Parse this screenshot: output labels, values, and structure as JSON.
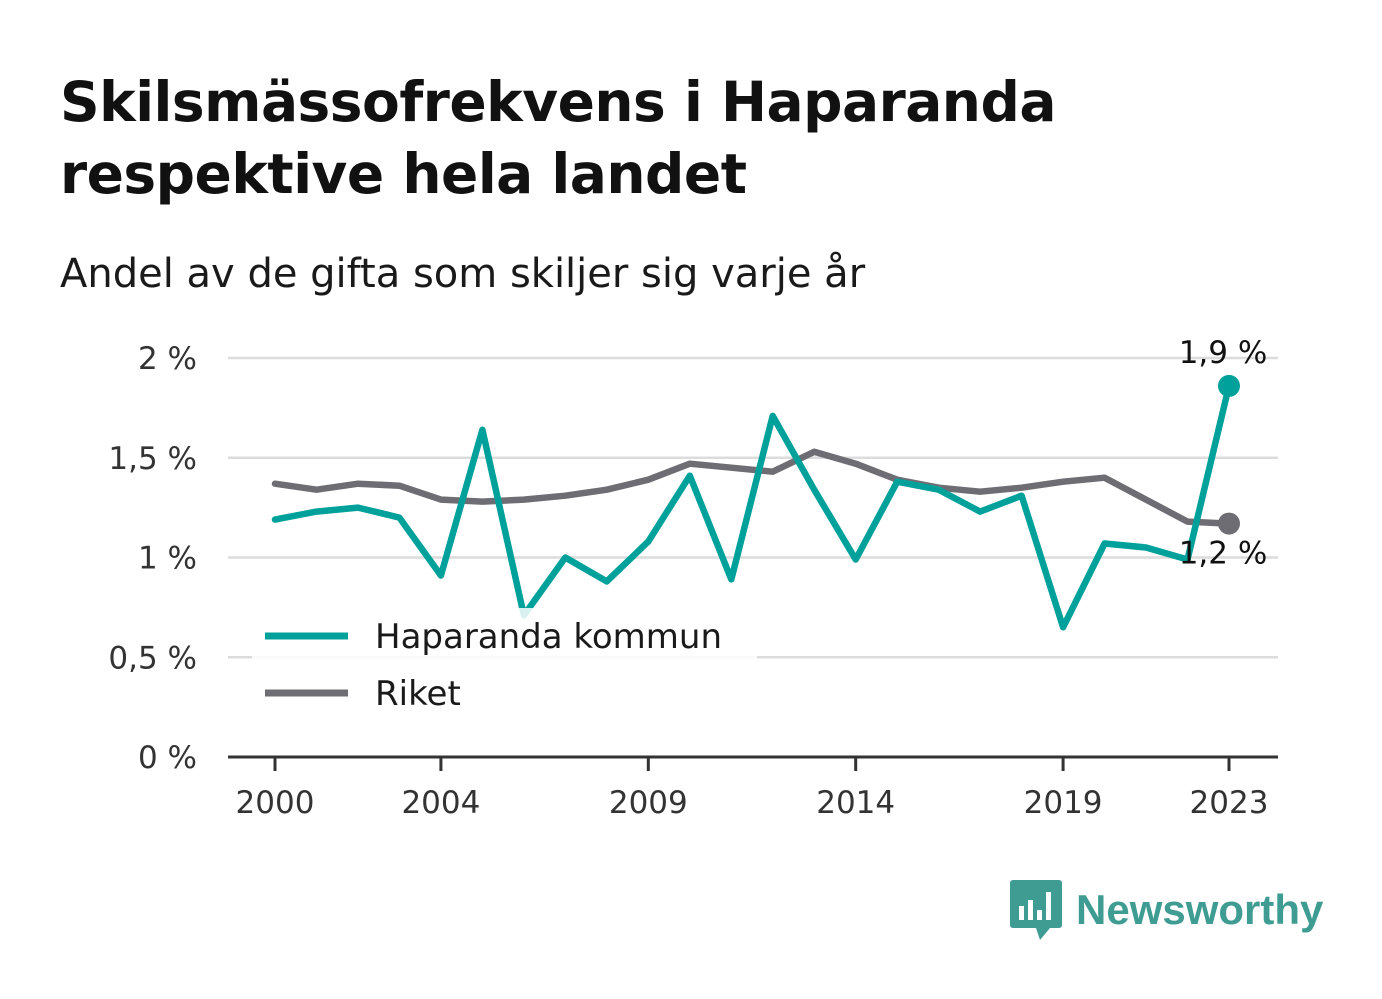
{
  "chart_data": {
    "type": "line",
    "title": "Skilsmässofrekvens i Haparanda respektive hela landet",
    "subtitle": "Andel av de gifta som skiljer sig varje år",
    "xlabel": "",
    "ylabel": "",
    "x": [
      2000,
      2001,
      2002,
      2003,
      2004,
      2005,
      2006,
      2007,
      2008,
      2009,
      2010,
      2011,
      2012,
      2013,
      2014,
      2015,
      2016,
      2017,
      2018,
      2019,
      2020,
      2021,
      2022,
      2023
    ],
    "xlim": [
      2000,
      2023
    ],
    "ylim": [
      0,
      2
    ],
    "x_ticks": [
      2000,
      2004,
      2009,
      2014,
      2019,
      2023
    ],
    "y_ticks": [
      {
        "value": 0,
        "label": "0 %"
      },
      {
        "value": 0.5,
        "label": "0,5 %"
      },
      {
        "value": 1,
        "label": "1 %"
      },
      {
        "value": 1.5,
        "label": "1,5 %"
      },
      {
        "value": 2,
        "label": "2 %"
      }
    ],
    "grid": true,
    "legend_position": "bottom-left",
    "series": [
      {
        "name": "Haparanda kommun",
        "color": "#00a19a",
        "values": [
          1.19,
          1.23,
          1.25,
          1.2,
          0.91,
          1.64,
          0.71,
          1.0,
          0.88,
          1.08,
          1.41,
          0.89,
          1.71,
          1.34,
          0.99,
          1.38,
          1.34,
          1.23,
          1.31,
          0.65,
          1.07,
          1.05,
          0.99,
          1.86
        ],
        "end_label": "1,9 %"
      },
      {
        "name": "Riket",
        "color": "#6e6d73",
        "values": [
          1.37,
          1.34,
          1.37,
          1.36,
          1.29,
          1.28,
          1.29,
          1.31,
          1.34,
          1.39,
          1.47,
          1.45,
          1.43,
          1.53,
          1.47,
          1.39,
          1.35,
          1.33,
          1.35,
          1.38,
          1.4,
          1.29,
          1.18,
          1.17
        ],
        "end_label": "1,2 %"
      }
    ]
  },
  "branding": {
    "logo_text": "Newsworthy",
    "logo_icon": "bar-chart-speech-icon",
    "color": "#3f9c92"
  }
}
